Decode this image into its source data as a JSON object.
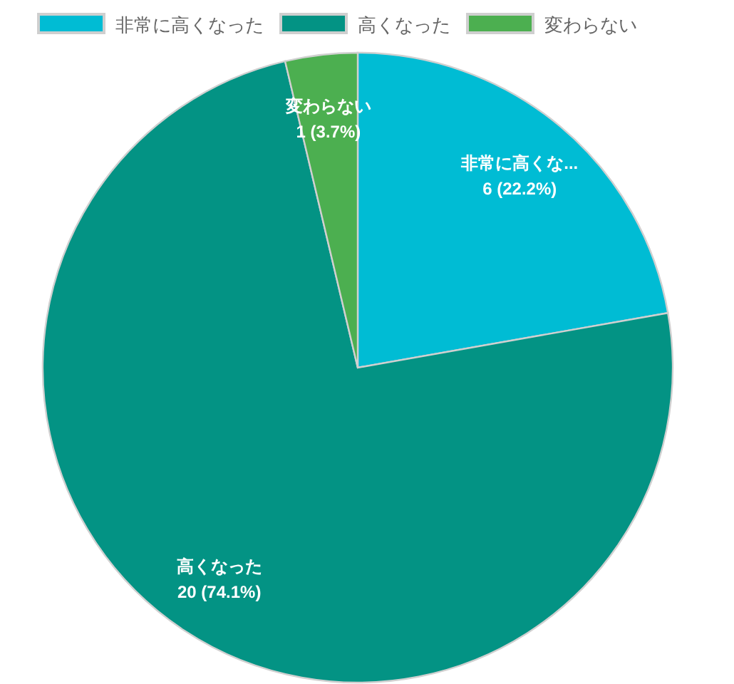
{
  "chart_data": {
    "type": "pie",
    "categories": [
      "非常に高くなった",
      "高くなった",
      "変わらない"
    ],
    "values": [
      6,
      20,
      1
    ],
    "colors": [
      "#00bcd4",
      "#039384",
      "#4caf50"
    ],
    "value_labels": [
      "非常に高くな...\n6 (22.2%)",
      "高くなった\n20 (74.1%)",
      "変わらない\n1 (3.7%)"
    ],
    "legend": "top"
  }
}
